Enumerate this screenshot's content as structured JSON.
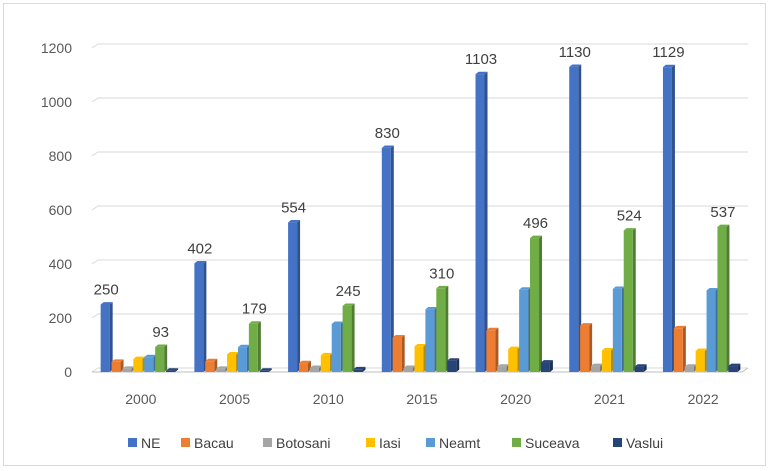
{
  "chart_data": {
    "type": "bar",
    "title": "",
    "xlabel": "",
    "ylabel": "",
    "ylim": [
      0,
      1200
    ],
    "yticks": [
      0,
      200,
      400,
      600,
      800,
      1000,
      1200
    ],
    "grid": true,
    "legend_position": "bottom",
    "categories": [
      "2000",
      "2005",
      "2010",
      "2015",
      "2020",
      "2021",
      "2022"
    ],
    "series": [
      {
        "name": "NE",
        "color": "#4472C4",
        "values": [
          250,
          402,
          554,
          830,
          1103,
          1130,
          1129
        ],
        "labels": [
          true,
          true,
          true,
          true,
          true,
          true,
          true
        ]
      },
      {
        "name": "Bacau",
        "color": "#ED7D31",
        "values": [
          38,
          40,
          33,
          128,
          155,
          172,
          162
        ]
      },
      {
        "name": "Botosani",
        "color": "#A5A5A5",
        "values": [
          12,
          12,
          15,
          15,
          20,
          22,
          20
        ]
      },
      {
        "name": "Iasi",
        "color": "#FFC000",
        "values": [
          48,
          65,
          62,
          95,
          85,
          80,
          78
        ]
      },
      {
        "name": "Neamt",
        "color": "#5B9BD5",
        "values": [
          55,
          92,
          178,
          232,
          305,
          308,
          302
        ]
      },
      {
        "name": "Suceava",
        "color": "#70AD47",
        "values": [
          93,
          179,
          245,
          310,
          496,
          524,
          537
        ],
        "labels": [
          true,
          true,
          true,
          true,
          true,
          true,
          true
        ]
      },
      {
        "name": "Vaslui",
        "color": "#264478",
        "values": [
          5,
          5,
          10,
          42,
          35,
          20,
          22
        ]
      }
    ]
  }
}
